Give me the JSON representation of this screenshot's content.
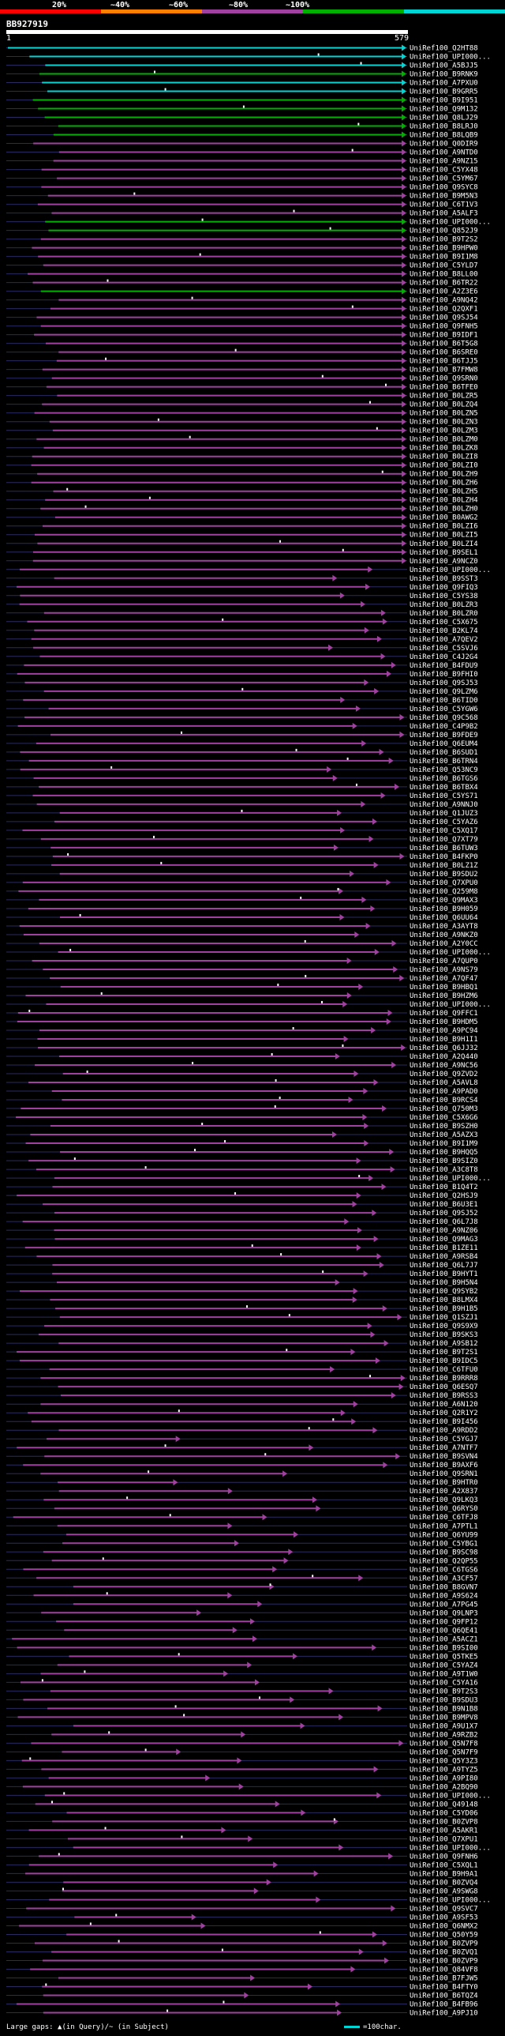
{
  "legend": {
    "items": [
      {
        "label": "20%",
        "color": "#ff0000"
      },
      {
        "label": "~40%",
        "color": "#ff8000"
      },
      {
        "label": "~60%",
        "color": "#a040a0"
      },
      {
        "label": "~80%",
        "color": "#00b000"
      },
      {
        "label": "~100%",
        "color": "#00d5d5"
      }
    ]
  },
  "query": {
    "id": "BB927919",
    "start": "1",
    "end": "579"
  },
  "hits": [
    {
      "name": "UniRef100_Q2HT88",
      "c": 4
    },
    {
      "name": "UniRef100_UPI000...",
      "c": 4
    },
    {
      "name": "UniRef100_A5BJJ5",
      "c": 4
    },
    {
      "name": "UniRef100_B9RNK9",
      "c": 3
    },
    {
      "name": "UniRef100_A7PXU0",
      "c": 4
    },
    {
      "name": "UniRef100_B9GRR5",
      "c": 4
    },
    {
      "name": "UniRef100_B9I951",
      "c": 3
    },
    {
      "name": "UniRef100_Q9M132",
      "c": 3
    },
    {
      "name": "UniRef100_Q8LJ29",
      "c": 3
    },
    {
      "name": "UniRef100_B8LRJ0",
      "c": 3
    },
    {
      "name": "UniRef100_B8LQB9",
      "c": 3
    },
    {
      "name": "UniRef100_Q0DIR9",
      "c": 2
    },
    {
      "name": "UniRef100_A9NTD0",
      "c": 2
    },
    {
      "name": "UniRef100_A9NZ15",
      "c": 2
    },
    {
      "name": "UniRef100_C5YX48",
      "c": 2
    },
    {
      "name": "UniRef100_C5YM67",
      "c": 2
    },
    {
      "name": "UniRef100_Q9SYC8",
      "c": 2
    },
    {
      "name": "UniRef100_B9M5N3",
      "c": 2
    },
    {
      "name": "UniRef100_C6T1V3",
      "c": 2
    },
    {
      "name": "UniRef100_A5ALF3",
      "c": 2
    },
    {
      "name": "UniRef100_UPI000...",
      "c": 3
    },
    {
      "name": "UniRef100_Q852J9",
      "c": 3
    },
    {
      "name": "UniRef100_B9T2S2",
      "c": 2
    },
    {
      "name": "UniRef100_B9HPW0",
      "c": 2
    },
    {
      "name": "UniRef100_B9I1M8",
      "c": 2
    },
    {
      "name": "UniRef100_C5YLD7",
      "c": 2
    },
    {
      "name": "UniRef100_B8LL00",
      "c": 2
    },
    {
      "name": "UniRef100_B6TR22",
      "c": 2
    },
    {
      "name": "UniRef100_A2Z3E6",
      "c": 3
    },
    {
      "name": "UniRef100_A9NQ42",
      "c": 2
    },
    {
      "name": "UniRef100_Q2QXF1",
      "c": 2
    },
    {
      "name": "UniRef100_Q9SJ54",
      "c": 2
    },
    {
      "name": "UniRef100_Q9FNH5",
      "c": 2
    },
    {
      "name": "UniRef100_B9IDF1",
      "c": 2
    },
    {
      "name": "UniRef100_B6T5G8",
      "c": 2
    },
    {
      "name": "UniRef100_B6SRE0",
      "c": 2
    },
    {
      "name": "UniRef100_B6TJJ5",
      "c": 2
    },
    {
      "name": "UniRef100_B7FMW8",
      "c": 2
    },
    {
      "name": "UniRef100_Q9SRN0",
      "c": 2
    },
    {
      "name": "UniRef100_B6TFE0",
      "c": 2
    },
    {
      "name": "UniRef100_B0LZR5",
      "c": 2
    },
    {
      "name": "UniRef100_B0LZQ4",
      "c": 2
    },
    {
      "name": "UniRef100_B0LZN5",
      "c": 2
    },
    {
      "name": "UniRef100_B0LZN3",
      "c": 2
    },
    {
      "name": "UniRef100_B0LZM3",
      "c": 2
    },
    {
      "name": "UniRef100_B0LZM0",
      "c": 2
    },
    {
      "name": "UniRef100_B0LZK8",
      "c": 2
    },
    {
      "name": "UniRef100_B0LZI8",
      "c": 2
    },
    {
      "name": "UniRef100_B0LZI0",
      "c": 2
    },
    {
      "name": "UniRef100_B0LZH9",
      "c": 2
    },
    {
      "name": "UniRef100_B0LZH6",
      "c": 2
    },
    {
      "name": "UniRef100_B0LZH5",
      "c": 2
    },
    {
      "name": "UniRef100_B0LZH4",
      "c": 2
    },
    {
      "name": "UniRef100_B0LZH0",
      "c": 2
    },
    {
      "name": "UniRef100_B0AWG2",
      "c": 2
    },
    {
      "name": "UniRef100_B0LZI6",
      "c": 2
    },
    {
      "name": "UniRef100_B0LZI5",
      "c": 2
    },
    {
      "name": "UniRef100_B0LZI4",
      "c": 2
    },
    {
      "name": "UniRef100_B9SEL1",
      "c": 2
    },
    {
      "name": "UniRef100_A9NCZ0",
      "c": 2
    },
    {
      "name": "UniRef100_UPI000...",
      "c": 2
    },
    {
      "name": "UniRef100_B9SST3",
      "c": 2
    },
    {
      "name": "UniRef100_Q9FIQ3",
      "c": 2
    },
    {
      "name": "UniRef100_C5YS38",
      "c": 2
    },
    {
      "name": "UniRef100_B0LZR3",
      "c": 2
    },
    {
      "name": "UniRef100_B0LZR0",
      "c": 2
    },
    {
      "name": "UniRef100_C5X675",
      "c": 2
    },
    {
      "name": "UniRef100_B2KL74",
      "c": 2
    },
    {
      "name": "UniRef100_A7QEV2",
      "c": 2
    },
    {
      "name": "UniRef100_C5SVJ6",
      "c": 2
    },
    {
      "name": "UniRef100_C4J2G4",
      "c": 2
    },
    {
      "name": "UniRef100_B4FDU9",
      "c": 2
    },
    {
      "name": "UniRef100_B9FHI0",
      "c": 2
    },
    {
      "name": "UniRef100_Q9SJ53",
      "c": 2
    },
    {
      "name": "UniRef100_Q9LZM6",
      "c": 2
    },
    {
      "name": "UniRef100_B6TID0",
      "c": 2
    },
    {
      "name": "UniRef100_C5YGW6",
      "c": 2
    },
    {
      "name": "UniRef100_Q9C568",
      "c": 2
    },
    {
      "name": "UniRef100_C4P9B2",
      "c": 2
    },
    {
      "name": "UniRef100_B9FDE9",
      "c": 2
    },
    {
      "name": "UniRef100_Q6EUM4",
      "c": 2
    },
    {
      "name": "UniRef100_B6SUD1",
      "c": 2
    },
    {
      "name": "UniRef100_B6TRN4",
      "c": 2
    },
    {
      "name": "UniRef100_Q53NC9",
      "c": 2
    },
    {
      "name": "UniRef100_B6TGS6",
      "c": 2
    },
    {
      "name": "UniRef100_B6TBX4",
      "c": 2
    },
    {
      "name": "UniRef100_C5YS71",
      "c": 2
    },
    {
      "name": "UniRef100_A9NNJ0",
      "c": 2
    },
    {
      "name": "UniRef100_Q1JUZ3",
      "c": 2
    },
    {
      "name": "UniRef100_C5YAZ6",
      "c": 2
    },
    {
      "name": "UniRef100_C5XQ17",
      "c": 2
    },
    {
      "name": "UniRef100_Q7XT79",
      "c": 2
    },
    {
      "name": "UniRef100_B6TUW3",
      "c": 2
    },
    {
      "name": "UniRef100_B4FKP0",
      "c": 2
    },
    {
      "name": "UniRef100_B0LZ1Z",
      "c": 2
    },
    {
      "name": "UniRef100_B9SDU2",
      "c": 2
    },
    {
      "name": "UniRef100_Q7XPU0",
      "c": 2
    },
    {
      "name": "UniRef100_Q259M8",
      "c": 2
    },
    {
      "name": "UniRef100_Q9MAX3",
      "c": 2
    },
    {
      "name": "UniRef100_B9H059",
      "c": 2
    },
    {
      "name": "UniRef100_Q6UU64",
      "c": 2
    },
    {
      "name": "UniRef100_A3AYT8",
      "c": 2
    },
    {
      "name": "UniRef100_A9NKZ0",
      "c": 2
    },
    {
      "name": "UniRef100_A2Y0CC",
      "c": 2
    },
    {
      "name": "UniRef100_UPI000...",
      "c": 2
    },
    {
      "name": "UniRef100_A7QUP0",
      "c": 2
    },
    {
      "name": "UniRef100_A9NS79",
      "c": 2
    },
    {
      "name": "UniRef100_A7QF47",
      "c": 2
    },
    {
      "name": "UniRef100_B9HBQ1",
      "c": 2
    },
    {
      "name": "UniRef100_B9HZM6",
      "c": 2
    },
    {
      "name": "UniRef100_UPI000...",
      "c": 2
    },
    {
      "name": "UniRef100_Q9FFC1",
      "c": 2
    },
    {
      "name": "UniRef100_B9HDM5",
      "c": 2
    },
    {
      "name": "UniRef100_A9PC94",
      "c": 2
    },
    {
      "name": "UniRef100_B9H1I1",
      "c": 2
    },
    {
      "name": "UniRef100_Q6JJ32",
      "c": 2
    },
    {
      "name": "UniRef100_A2Q440",
      "c": 2
    },
    {
      "name": "UniRef100_A9NC56",
      "c": 2
    },
    {
      "name": "UniRef100_Q9ZVD2",
      "c": 2
    },
    {
      "name": "UniRef100_A5AVL8",
      "c": 2
    },
    {
      "name": "UniRef100_A9PAD0",
      "c": 2
    },
    {
      "name": "UniRef100_B9RCS4",
      "c": 2
    },
    {
      "name": "UniRef100_Q750M3",
      "c": 2
    },
    {
      "name": "UniRef100_C5X6G6",
      "c": 2
    },
    {
      "name": "UniRef100_B9SZH0",
      "c": 2
    },
    {
      "name": "UniRef100_A5AZX3",
      "c": 2
    },
    {
      "name": "UniRef100_B9I1M9",
      "c": 2
    },
    {
      "name": "UniRef100_B9HQQ5",
      "c": 2
    },
    {
      "name": "UniRef100_B9SIZ0",
      "c": 2
    },
    {
      "name": "UniRef100_A3C8T8",
      "c": 2
    },
    {
      "name": "UniRef100_UPI000...",
      "c": 2
    },
    {
      "name": "UniRef100_B1Q4T2",
      "c": 2
    },
    {
      "name": "UniRef100_Q2HSJ9",
      "c": 2
    },
    {
      "name": "UniRef100_B6U3E1",
      "c": 2
    },
    {
      "name": "UniRef100_Q9SJ52",
      "c": 2
    },
    {
      "name": "UniRef100_Q6L7J8",
      "c": 2
    },
    {
      "name": "UniRef100_A9NZ06",
      "c": 2
    },
    {
      "name": "UniRef100_Q9MAG3",
      "c": 2
    },
    {
      "name": "UniRef100_B1ZE11",
      "c": 2
    },
    {
      "name": "UniRef100_A9RSB4",
      "c": 2
    },
    {
      "name": "UniRef100_Q6L7J7",
      "c": 2
    },
    {
      "name": "UniRef100_B9HYT1",
      "c": 2
    },
    {
      "name": "UniRef100_B9H5N4",
      "c": 2
    },
    {
      "name": "UniRef100_Q9SYB2",
      "c": 2
    },
    {
      "name": "UniRef100_B8LMX4",
      "c": 2
    },
    {
      "name": "UniRef100_B9H1B5",
      "c": 2
    },
    {
      "name": "UniRef100_Q1SZJ1",
      "c": 2
    },
    {
      "name": "UniRef100_Q9S9X9",
      "c": 2
    },
    {
      "name": "UniRef100_B9SKS3",
      "c": 2
    },
    {
      "name": "UniRef100_A9SB12",
      "c": 2
    },
    {
      "name": "UniRef100_B9T2S1",
      "c": 2
    },
    {
      "name": "UniRef100_B9IDC5",
      "c": 2
    },
    {
      "name": "UniRef100_C6TFU0",
      "c": 2
    },
    {
      "name": "UniRef100_B9RRR8",
      "c": 2
    },
    {
      "name": "UniRef100_Q6ESQ7",
      "c": 2
    },
    {
      "name": "UniRef100_B9RSS3",
      "c": 2
    },
    {
      "name": "UniRef100_A6N120",
      "c": 2
    },
    {
      "name": "UniRef100_Q2R1Y2",
      "c": 2
    },
    {
      "name": "UniRef100_B9I456",
      "c": 2
    },
    {
      "name": "UniRef100_A9RDD2",
      "c": 2
    },
    {
      "name": "UniRef100_C5YGJ7",
      "c": 2
    },
    {
      "name": "UniRef100_A7NTF7",
      "c": 2
    },
    {
      "name": "UniRef100_B9SVN4",
      "c": 2
    },
    {
      "name": "UniRef100_B9AXF6",
      "c": 2
    },
    {
      "name": "UniRef100_Q9SRN1",
      "c": 2
    },
    {
      "name": "UniRef100_B9HTR0",
      "c": 2
    },
    {
      "name": "UniRef100_A2X837",
      "c": 2
    },
    {
      "name": "UniRef100_Q9LKQ3",
      "c": 2
    },
    {
      "name": "UniRef100_Q6RYS0",
      "c": 2
    },
    {
      "name": "UniRef100_C6TFJ8",
      "c": 2
    },
    {
      "name": "UniRef100_A7PTL1",
      "c": 2
    },
    {
      "name": "UniRef100_Q6YU99",
      "c": 2
    },
    {
      "name": "UniRef100_C5YBG1",
      "c": 2
    },
    {
      "name": "UniRef100_B9SC98",
      "c": 2
    },
    {
      "name": "UniRef100_Q2QP55",
      "c": 2
    },
    {
      "name": "UniRef100_C6TGS6",
      "c": 2
    },
    {
      "name": "UniRef100_A3CF57",
      "c": 2
    },
    {
      "name": "UniRef100_B8GVN7",
      "c": 2
    },
    {
      "name": "UniRef100_A9S624",
      "c": 2
    },
    {
      "name": "UniRef100_A7PG45",
      "c": 2
    },
    {
      "name": "UniRef100_Q9LNP3",
      "c": 2
    },
    {
      "name": "UniRef100_Q9FP12",
      "c": 2
    },
    {
      "name": "UniRef100_Q6QE41",
      "c": 2
    },
    {
      "name": "UniRef100_A5ACZ1",
      "c": 2
    },
    {
      "name": "UniRef100_B9SI00",
      "c": 2
    },
    {
      "name": "UniRef100_Q5TKE5",
      "c": 2
    },
    {
      "name": "UniRef100_C5YAZ4",
      "c": 2
    },
    {
      "name": "UniRef100_A9T1W0",
      "c": 2
    },
    {
      "name": "UniRef100_C5YA16",
      "c": 2
    },
    {
      "name": "UniRef100_B9T2S3",
      "c": 2
    },
    {
      "name": "UniRef100_B9SDU3",
      "c": 2
    },
    {
      "name": "UniRef100_B9N1B8",
      "c": 2
    },
    {
      "name": "UniRef100_B9MPV8",
      "c": 2
    },
    {
      "name": "UniRef100_A9U1X7",
      "c": 2
    },
    {
      "name": "UniRef100_A9RZB2",
      "c": 2
    },
    {
      "name": "UniRef100_Q5N7F8",
      "c": 2
    },
    {
      "name": "UniRef100_Q5N7F9",
      "c": 2
    },
    {
      "name": "UniRef100_Q5Y3Z3",
      "c": 2
    },
    {
      "name": "UniRef100_A9TYZ5",
      "c": 2
    },
    {
      "name": "UniRef100_A9PI80",
      "c": 2
    },
    {
      "name": "UniRef100_A2BQ90",
      "c": 2
    },
    {
      "name": "UniRef100_UPI000...",
      "c": 2
    },
    {
      "name": "UniRef100_Q49148",
      "c": 2
    },
    {
      "name": "UniRef100_C5YD06",
      "c": 2
    },
    {
      "name": "UniRef100_B0ZVP8",
      "c": 2
    },
    {
      "name": "UniRef100_A5AKR1",
      "c": 2
    },
    {
      "name": "UniRef100_Q7XPU1",
      "c": 2
    },
    {
      "name": "UniRef100_UPI000...",
      "c": 2
    },
    {
      "name": "UniRef100_Q9FNH6",
      "c": 2
    },
    {
      "name": "UniRef100_C5XQL1",
      "c": 2
    },
    {
      "name": "UniRef100_B9H9A1",
      "c": 2
    },
    {
      "name": "UniRef100_B0ZVQ4",
      "c": 2
    },
    {
      "name": "UniRef100_A9SWG8",
      "c": 2
    },
    {
      "name": "UniRef100_UPI000...",
      "c": 2
    },
    {
      "name": "UniRef100_Q9SVC7",
      "c": 2
    },
    {
      "name": "UniRef100_A9SF53",
      "c": 2
    },
    {
      "name": "UniRef100_Q6NMX2",
      "c": 2
    },
    {
      "name": "UniRef100_Q50Y59",
      "c": 2
    },
    {
      "name": "UniRef100_B0ZVP9",
      "c": 2
    },
    {
      "name": "UniRef100_B0ZVQ1",
      "c": 2
    },
    {
      "name": "UniRef100_B0ZVP9",
      "c": 2
    },
    {
      "name": "UniRef100_Q84VF8",
      "c": 2
    },
    {
      "name": "UniRef100_B7FJW5",
      "c": 2
    },
    {
      "name": "UniRef100_B4FTY0",
      "c": 2
    },
    {
      "name": "UniRef100_B6TQZ4",
      "c": 2
    },
    {
      "name": "UniRef100_B4FB96",
      "c": 2
    },
    {
      "name": "UniRef100_A9PJ10",
      "c": 2
    }
  ],
  "footer": {
    "gaps_text": "Large gaps: ▲(in Query)/~ (in Subject)",
    "scale_text": "=100char."
  }
}
